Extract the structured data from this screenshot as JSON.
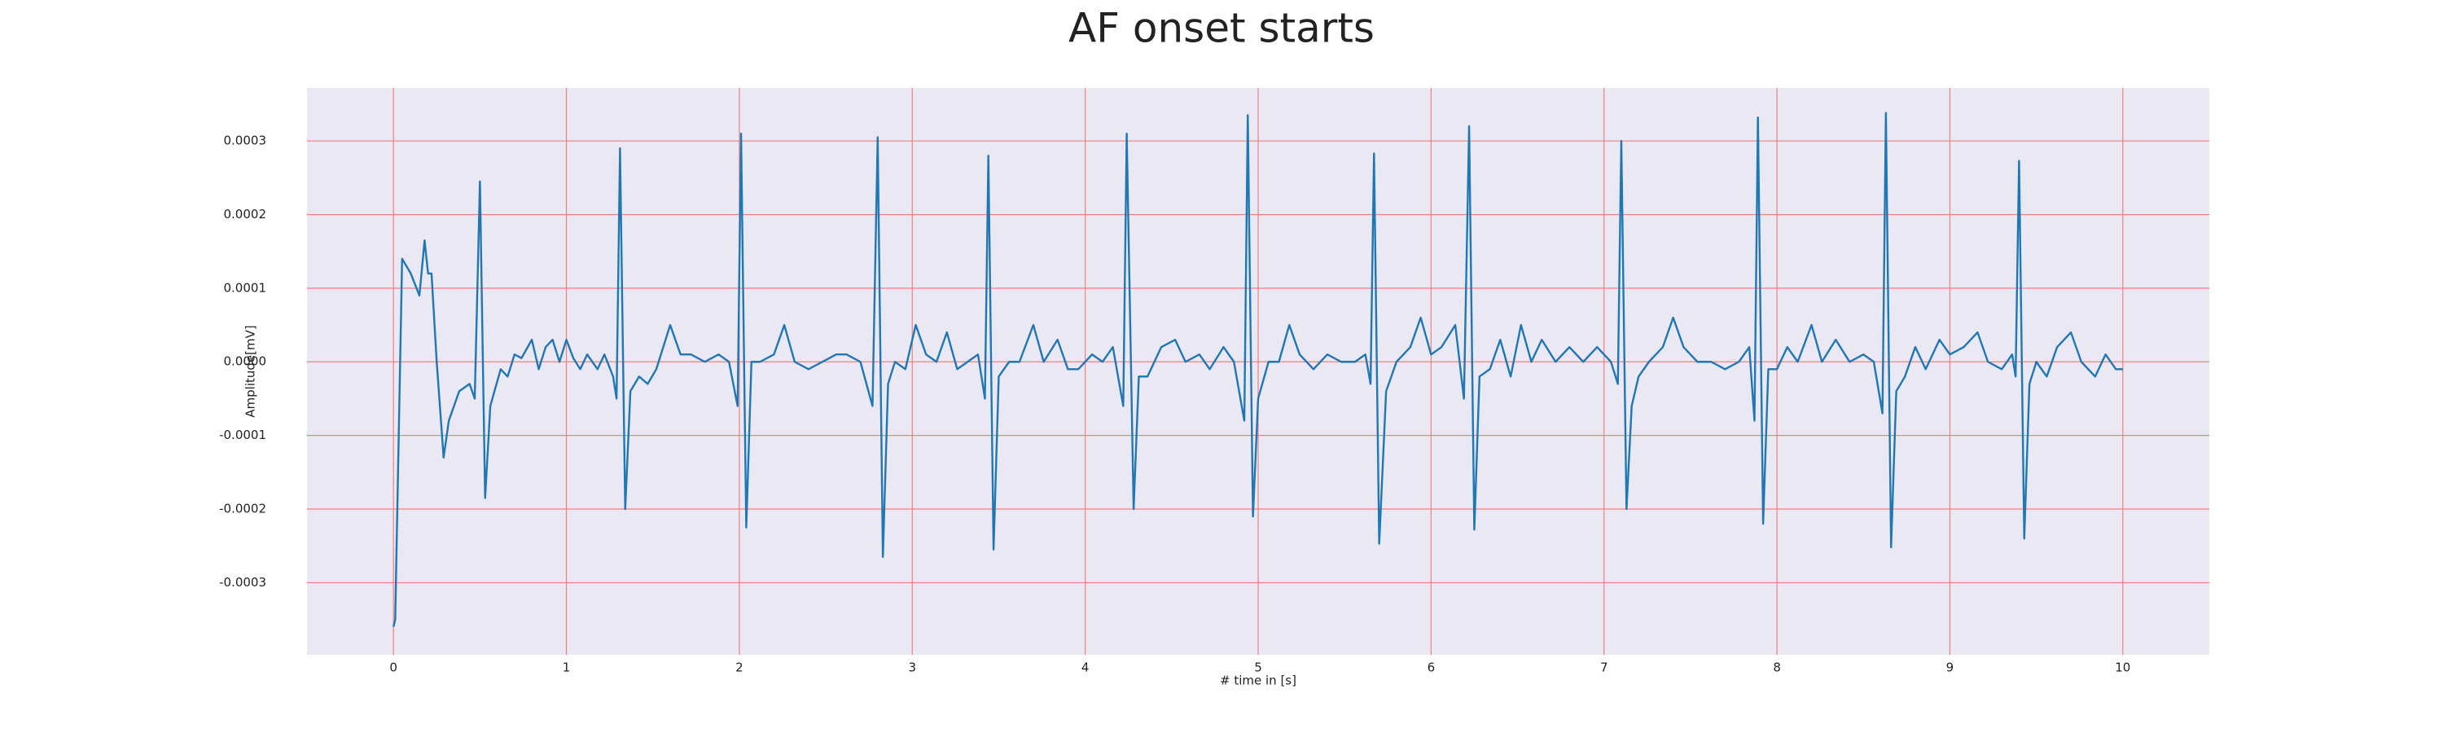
{
  "chart_data": {
    "type": "line",
    "title": "AF onset starts",
    "xlabel": "# time in [s]",
    "ylabel": "Amplitude[mV]",
    "background": "#eae8f2",
    "grid": true,
    "grid_color": "#f08080",
    "xlim": [
      -0.5,
      10.5
    ],
    "ylim": [
      -0.000398,
      0.000372
    ],
    "xticks": [
      0,
      1,
      2,
      3,
      4,
      5,
      6,
      7,
      8,
      9,
      10
    ],
    "yticks": [
      -0.0003,
      -0.0002,
      -0.0001,
      {
        "value": 0,
        "label": "0.0000"
      },
      0.0001,
      0.0002,
      0.0003
    ],
    "series": [
      {
        "color": "#1f77b4",
        "x": [
          0,
          0.01,
          0.05,
          0.1,
          0.15,
          0.18,
          0.2,
          0.22,
          0.25,
          0.29,
          0.32,
          0.38,
          0.44,
          0.47,
          0.5,
          0.53,
          0.56,
          0.62,
          0.66,
          0.7,
          0.74,
          0.8,
          0.84,
          0.88,
          0.92,
          0.96,
          1.0,
          1.04,
          1.08,
          1.12,
          1.18,
          1.22,
          1.27,
          1.29,
          1.31,
          1.34,
          1.37,
          1.42,
          1.47,
          1.52,
          1.6,
          1.66,
          1.72,
          1.8,
          1.88,
          1.94,
          1.99,
          2.01,
          2.04,
          2.07,
          2.12,
          2.2,
          2.26,
          2.32,
          2.4,
          2.48,
          2.56,
          2.62,
          2.7,
          2.77,
          2.8,
          2.83,
          2.86,
          2.9,
          2.96,
          3.02,
          3.08,
          3.14,
          3.2,
          3.26,
          3.32,
          3.38,
          3.42,
          3.44,
          3.47,
          3.5,
          3.56,
          3.62,
          3.7,
          3.76,
          3.84,
          3.9,
          3.96,
          4.04,
          4.1,
          4.16,
          4.22,
          4.24,
          4.28,
          4.31,
          4.36,
          4.44,
          4.52,
          4.58,
          4.66,
          4.72,
          4.8,
          4.86,
          4.92,
          4.94,
          4.97,
          5.0,
          5.06,
          5.12,
          5.18,
          5.24,
          5.32,
          5.4,
          5.48,
          5.56,
          5.62,
          5.65,
          5.67,
          5.7,
          5.74,
          5.8,
          5.88,
          5.94,
          6.0,
          6.06,
          6.14,
          6.19,
          6.22,
          6.25,
          6.28,
          6.34,
          6.4,
          6.46,
          6.52,
          6.58,
          6.64,
          6.72,
          6.8,
          6.88,
          6.96,
          7.04,
          7.08,
          7.1,
          7.13,
          7.16,
          7.2,
          7.26,
          7.34,
          7.4,
          7.46,
          7.54,
          7.62,
          7.7,
          7.78,
          7.84,
          7.87,
          7.89,
          7.92,
          7.95,
          8.0,
          8.06,
          8.12,
          8.2,
          8.26,
          8.34,
          8.42,
          8.5,
          8.56,
          8.61,
          8.63,
          8.66,
          8.69,
          8.74,
          8.8,
          8.86,
          8.94,
          9.0,
          9.08,
          9.16,
          9.22,
          9.3,
          9.36,
          9.38,
          9.4,
          9.43,
          9.46,
          9.5,
          9.56,
          9.62,
          9.7,
          9.76,
          9.84,
          9.9,
          9.96,
          10.0
        ],
        "values": [
          -0.00036,
          -0.00035,
          0.00014,
          0.00012,
          9e-05,
          0.000165,
          0.00012,
          0.00012,
          0,
          -0.00013,
          -8e-05,
          -4e-05,
          -3e-05,
          -5e-05,
          0.000245,
          -0.000185,
          -6e-05,
          -1e-05,
          -2e-05,
          1e-05,
          5e-06,
          3e-05,
          -1e-05,
          2e-05,
          3e-05,
          0,
          3e-05,
          5e-06,
          -1e-05,
          1e-05,
          -1e-05,
          1e-05,
          -2e-05,
          -5e-05,
          0.00029,
          -0.0002,
          -4e-05,
          -2e-05,
          -3e-05,
          -1e-05,
          5e-05,
          1e-05,
          1e-05,
          0,
          1e-05,
          0,
          -6e-05,
          0.00031,
          -0.000225,
          0,
          0,
          1e-05,
          5e-05,
          0,
          -1e-05,
          0,
          1e-05,
          1e-05,
          0,
          -6e-05,
          0.000305,
          -0.000265,
          -3e-05,
          0,
          -1e-05,
          5e-05,
          1e-05,
          0,
          4e-05,
          -1e-05,
          0,
          1e-05,
          -5e-05,
          0.00028,
          -0.000255,
          -2e-05,
          0,
          0,
          5e-05,
          0,
          3e-05,
          -1e-05,
          -1e-05,
          1e-05,
          0,
          2e-05,
          -6e-05,
          0.00031,
          -0.0002,
          -2e-05,
          -2e-05,
          2e-05,
          3e-05,
          0,
          1e-05,
          -1e-05,
          2e-05,
          0,
          -8e-05,
          0.000335,
          -0.00021,
          -5e-05,
          0,
          0,
          5e-05,
          1e-05,
          -1e-05,
          1e-05,
          0,
          0,
          1e-05,
          -3e-05,
          0.000283,
          -0.000247,
          -4e-05,
          0,
          2e-05,
          6e-05,
          1e-05,
          2e-05,
          5e-05,
          -5e-05,
          0.00032,
          -0.000228,
          -2e-05,
          -1e-05,
          3e-05,
          -2e-05,
          5e-05,
          0,
          3e-05,
          0,
          2e-05,
          0,
          2e-05,
          0,
          -3e-05,
          0.0003,
          -0.0002,
          -6e-05,
          -2e-05,
          0,
          2e-05,
          6e-05,
          2e-05,
          0,
          0,
          -1e-05,
          0,
          2e-05,
          -8e-05,
          0.000332,
          -0.00022,
          -1e-05,
          -1e-05,
          2e-05,
          0,
          5e-05,
          0,
          3e-05,
          0,
          1e-05,
          0,
          -7e-05,
          0.000338,
          -0.000252,
          -4e-05,
          -2e-05,
          2e-05,
          -1e-05,
          3e-05,
          1e-05,
          2e-05,
          4e-05,
          0,
          -1e-05,
          1e-05,
          -2e-05,
          0.000273,
          -0.00024,
          -3e-05,
          0,
          -2e-05,
          2e-05,
          4e-05,
          0,
          -2e-05,
          1e-05,
          -1e-05,
          -1e-05
        ]
      }
    ]
  }
}
